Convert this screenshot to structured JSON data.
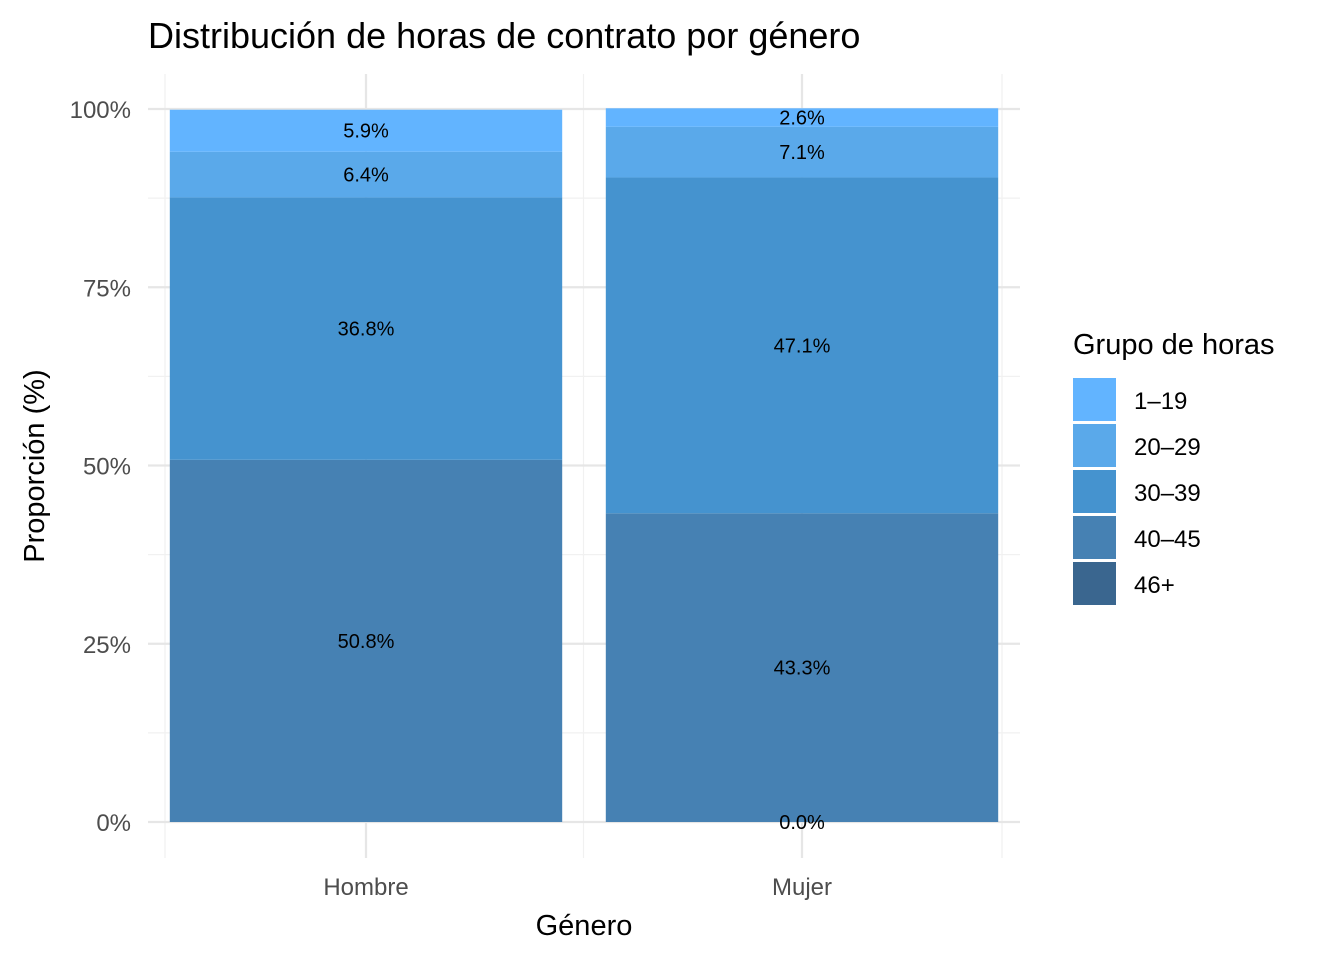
{
  "chart_data": {
    "type": "bar",
    "stacked": true,
    "title": "Distribución de horas de contrato por género",
    "xlabel": "Género",
    "ylabel": "Proporción (%)",
    "ylim": [
      0,
      1
    ],
    "yticks": [
      {
        "value": 0,
        "label": "0%"
      },
      {
        "value": 0.25,
        "label": "25%"
      },
      {
        "value": 0.5,
        "label": "50%"
      },
      {
        "value": 0.75,
        "label": "75%"
      },
      {
        "value": 1,
        "label": "100%"
      }
    ],
    "grid": true,
    "legend_position": "right",
    "legend_title": "Grupo de horas",
    "categories": [
      "Hombre",
      "Mujer"
    ],
    "series": [
      {
        "name": "1–19",
        "color": "#62b4ff",
        "values": [
          0.059,
          0.026
        ],
        "labels": [
          "5.9%",
          "2.6%"
        ]
      },
      {
        "name": "20–29",
        "color": "#5aa9ea",
        "values": [
          0.064,
          0.071
        ],
        "labels": [
          "6.4%",
          "7.1%"
        ]
      },
      {
        "name": "30–39",
        "color": "#4593cf",
        "values": [
          0.368,
          0.471
        ],
        "labels": [
          "36.8%",
          "47.1%"
        ]
      },
      {
        "name": "40–45",
        "color": "#4681b3",
        "values": [
          0.508,
          0.433
        ],
        "labels": [
          "50.8%",
          "43.3%"
        ]
      },
      {
        "name": "46+",
        "color": "#3a668f",
        "values": [
          0.0,
          0.0
        ],
        "labels": [
          "",
          "0.0%"
        ]
      }
    ]
  }
}
